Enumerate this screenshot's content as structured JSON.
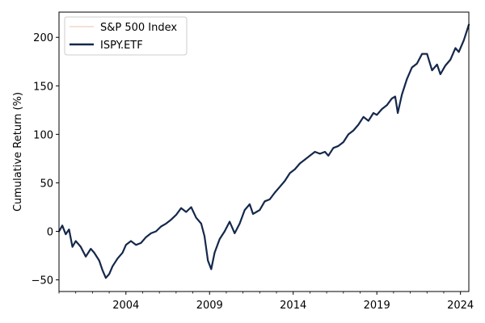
{
  "chart_data": {
    "type": "line",
    "title": "",
    "xlabel": "",
    "ylabel": "Cumulative Return (%)",
    "xlim": [
      2000.0,
      2024.5
    ],
    "ylim": [
      -62,
      226
    ],
    "x_ticks": [
      2004,
      2009,
      2014,
      2019,
      2024
    ],
    "x_tick_labels": [
      "2004",
      "2009",
      "2014",
      "2019",
      "2024"
    ],
    "y_ticks": [
      -50,
      0,
      50,
      100,
      150,
      200
    ],
    "y_tick_labels": [
      "−50",
      "0",
      "50",
      "100",
      "150",
      "200"
    ],
    "grid": false,
    "legend": {
      "placement": "top-left"
    },
    "series": [
      {
        "name": "S&P 500 Index",
        "color": "#f6dcd0",
        "x": [
          2000.0,
          2000.2,
          2000.4,
          2000.6,
          2000.8,
          2001.0,
          2001.3,
          2001.6,
          2001.9,
          2002.1,
          2002.4,
          2002.6,
          2002.8,
          2003.0,
          2003.2,
          2003.5,
          2003.8,
          2004.0,
          2004.3,
          2004.6,
          2004.9,
          2005.2,
          2005.5,
          2005.8,
          2006.1,
          2006.4,
          2006.7,
          2007.0,
          2007.3,
          2007.6,
          2007.9,
          2008.2,
          2008.5,
          2008.7,
          2008.9,
          2009.1,
          2009.3,
          2009.6,
          2009.9,
          2010.2,
          2010.5,
          2010.8,
          2011.1,
          2011.4,
          2011.6,
          2011.8,
          2012.0,
          2012.3,
          2012.6,
          2012.9,
          2013.2,
          2013.5,
          2013.8,
          2014.1,
          2014.4,
          2014.7,
          2015.0,
          2015.3,
          2015.6,
          2015.9,
          2016.1,
          2016.4,
          2016.7,
          2017.0,
          2017.3,
          2017.6,
          2017.9,
          2018.2,
          2018.5,
          2018.8,
          2019.0,
          2019.3,
          2019.6,
          2019.9,
          2020.1,
          2020.25,
          2020.5,
          2020.8,
          2021.1,
          2021.4,
          2021.7,
          2022.0,
          2022.3,
          2022.6,
          2022.8,
          2023.1,
          2023.4,
          2023.7,
          2023.9,
          2024.2,
          2024.5
        ],
        "y": [
          0,
          5,
          -3,
          2,
          -15,
          -10,
          -15,
          -25,
          -18,
          -22,
          -30,
          -40,
          -47,
          -44,
          -36,
          -28,
          -22,
          -14,
          -10,
          -14,
          -12,
          -6,
          -2,
          0,
          5,
          8,
          12,
          17,
          24,
          20,
          25,
          14,
          8,
          -5,
          -30,
          -38,
          -22,
          -8,
          0,
          10,
          -2,
          8,
          22,
          27,
          18,
          20,
          22,
          30,
          33,
          40,
          46,
          52,
          60,
          64,
          70,
          74,
          78,
          82,
          80,
          82,
          78,
          86,
          88,
          92,
          100,
          104,
          110,
          118,
          114,
          122,
          120,
          126,
          130,
          136,
          138,
          122,
          140,
          156,
          168,
          172,
          182,
          182,
          166,
          172,
          162,
          170,
          176,
          188,
          184,
          196,
          212
        ]
      },
      {
        "name": "ISPY.ETF",
        "color": "#14284b",
        "x": [
          2000.0,
          2000.2,
          2000.4,
          2000.6,
          2000.8,
          2001.0,
          2001.3,
          2001.6,
          2001.9,
          2002.1,
          2002.4,
          2002.6,
          2002.8,
          2003.0,
          2003.2,
          2003.5,
          2003.8,
          2004.0,
          2004.3,
          2004.6,
          2004.9,
          2005.2,
          2005.5,
          2005.8,
          2006.1,
          2006.4,
          2006.7,
          2007.0,
          2007.3,
          2007.6,
          2007.9,
          2008.2,
          2008.5,
          2008.7,
          2008.9,
          2009.1,
          2009.3,
          2009.6,
          2009.9,
          2010.2,
          2010.5,
          2010.8,
          2011.1,
          2011.4,
          2011.6,
          2011.8,
          2012.0,
          2012.3,
          2012.6,
          2012.9,
          2013.2,
          2013.5,
          2013.8,
          2014.1,
          2014.4,
          2014.7,
          2015.0,
          2015.3,
          2015.6,
          2015.9,
          2016.1,
          2016.4,
          2016.7,
          2017.0,
          2017.3,
          2017.6,
          2017.9,
          2018.2,
          2018.5,
          2018.8,
          2019.0,
          2019.3,
          2019.6,
          2019.9,
          2020.1,
          2020.25,
          2020.5,
          2020.8,
          2021.1,
          2021.4,
          2021.7,
          2022.0,
          2022.3,
          2022.6,
          2022.8,
          2023.1,
          2023.4,
          2023.7,
          2023.9,
          2024.2,
          2024.5
        ],
        "y": [
          0,
          6,
          -3,
          2,
          -16,
          -10,
          -16,
          -26,
          -18,
          -22,
          -30,
          -40,
          -48,
          -44,
          -36,
          -28,
          -22,
          -14,
          -10,
          -14,
          -12,
          -6,
          -2,
          0,
          5,
          8,
          12,
          17,
          24,
          20,
          25,
          14,
          8,
          -5,
          -30,
          -39,
          -22,
          -8,
          0,
          10,
          -2,
          8,
          22,
          28,
          18,
          20,
          22,
          31,
          33,
          40,
          46,
          52,
          60,
          64,
          70,
          74,
          78,
          82,
          80,
          82,
          78,
          86,
          88,
          92,
          100,
          104,
          110,
          118,
          114,
          122,
          120,
          126,
          130,
          137,
          139,
          122,
          141,
          157,
          169,
          173,
          183,
          183,
          166,
          172,
          162,
          171,
          177,
          189,
          185,
          197,
          213
        ]
      }
    ]
  }
}
